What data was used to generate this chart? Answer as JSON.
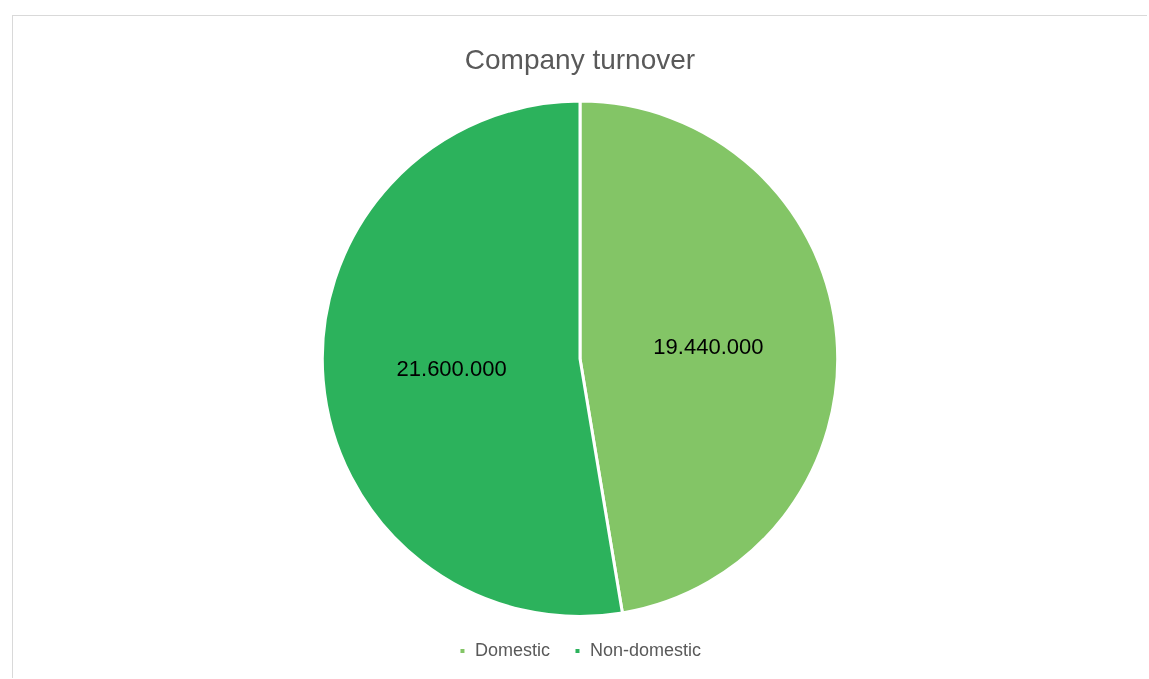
{
  "chart_data": {
    "type": "pie",
    "title": "Company turnover",
    "categories": [
      "Domestic",
      "Non-domestic"
    ],
    "values": [
      19440000,
      21600000
    ],
    "value_labels": [
      "19.440.000",
      "21.600.000"
    ],
    "colors": [
      "#83c566",
      "#2cb25c"
    ],
    "legend": "bottom"
  }
}
